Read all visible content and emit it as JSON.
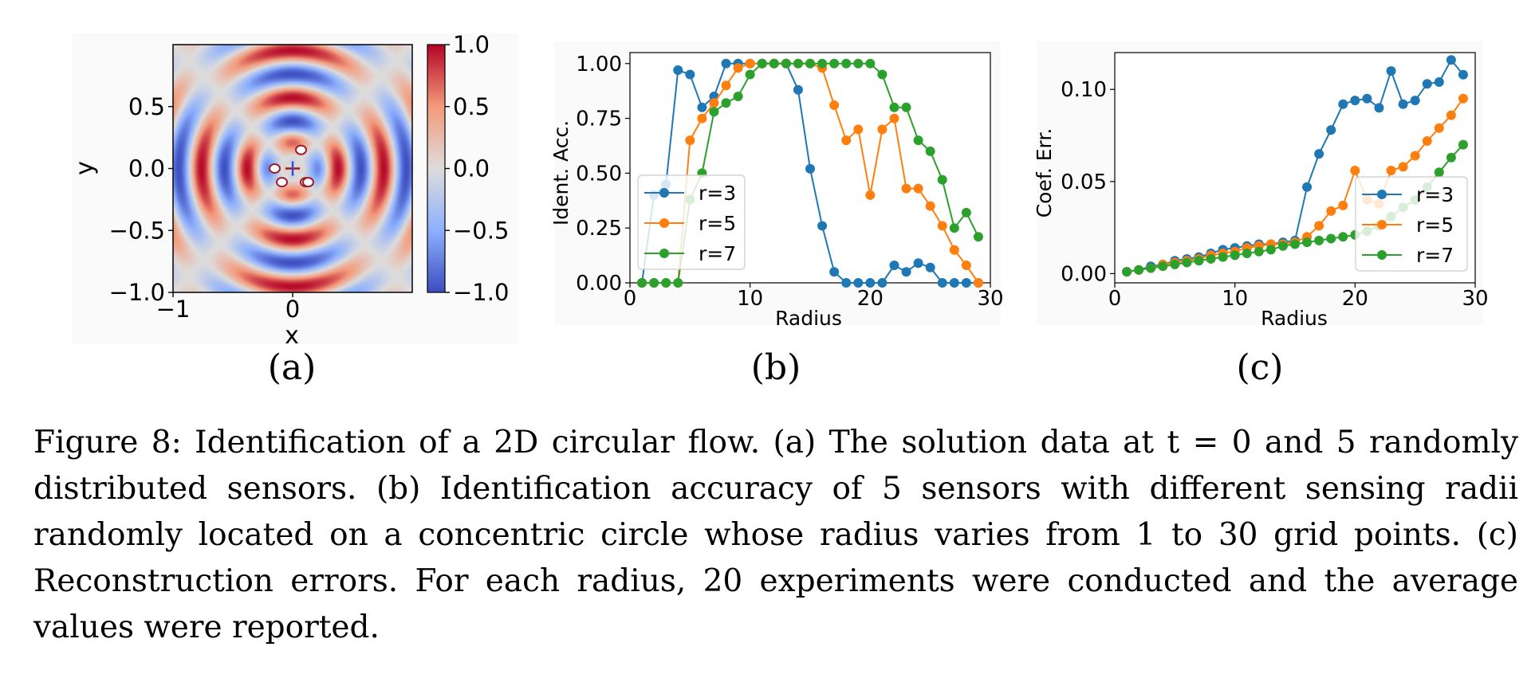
{
  "figure": {
    "caption": "Figure 8: Identification of a 2D circular flow. (a) The solution data at t = 0 and 5 randomly distributed sensors. (b) Identification accuracy of 5 sensors with different sensing radii randomly located on a concentric circle whose radius varies from 1 to 30 grid points. (c) Reconstruction errors. For each radius, 20 experiments were conducted and the average values were reported."
  },
  "chart_data": [
    {
      "type": "heatmap",
      "panel_label": "(a)",
      "xlabel": "x",
      "ylabel": "y",
      "xlim": [
        -1.0,
        1.0
      ],
      "ylim": [
        -1.0,
        1.0
      ],
      "xticks": [
        "−1",
        "0"
      ],
      "yticks": [
        "0.5",
        "0.0",
        "−0.5",
        "−1.0"
      ],
      "colorbar": {
        "min": -1.0,
        "max": 1.0,
        "ticks": [
          "1.0",
          "0.5",
          "0.0",
          "−0.5",
          "−1.0"
        ],
        "colormap": "coolwarm"
      },
      "center_marker": {
        "x": 0.0,
        "y": 0.0,
        "symbol": "+"
      },
      "sensors": [
        {
          "x": 0.07,
          "y": 0.15
        },
        {
          "x": -0.15,
          "y": 0.0
        },
        {
          "x": -0.09,
          "y": -0.11
        },
        {
          "x": 0.11,
          "y": -0.11
        },
        {
          "x": 0.13,
          "y": -0.11
        }
      ]
    },
    {
      "type": "line",
      "panel_label": "(b)",
      "xlabel": "Radius",
      "ylabel": "Ident. Acc.",
      "xlim": [
        0,
        30
      ],
      "ylim": [
        0.0,
        1.05
      ],
      "xticks": [
        "0",
        "10",
        "20",
        "30"
      ],
      "yticks": [
        "0.00",
        "0.25",
        "0.50",
        "0.75",
        "1.00"
      ],
      "legend": "center-left",
      "x": [
        1,
        2,
        3,
        4,
        5,
        6,
        7,
        8,
        9,
        10,
        11,
        12,
        13,
        14,
        15,
        16,
        17,
        18,
        19,
        20,
        21,
        22,
        23,
        24,
        25,
        26,
        27,
        28,
        29
      ],
      "series": [
        {
          "name": "r=3",
          "color": "#1f77b4",
          "values": [
            0,
            0.4,
            0.45,
            0.97,
            0.95,
            0.8,
            0.85,
            1.0,
            1.0,
            1.0,
            1.0,
            1.0,
            1.0,
            0.88,
            0.52,
            0.26,
            0.05,
            0.0,
            0.0,
            0.0,
            0.0,
            0.08,
            0.05,
            0.09,
            0.07,
            0.0,
            0.0,
            0.0,
            0.0
          ]
        },
        {
          "name": "r=5",
          "color": "#ff7f0e",
          "values": [
            0,
            0,
            0,
            0,
            0.65,
            0.75,
            0.82,
            0.9,
            0.98,
            1.0,
            1.0,
            1.0,
            1.0,
            1.0,
            1.0,
            0.98,
            0.81,
            0.65,
            0.7,
            0.4,
            0.7,
            0.75,
            0.43,
            0.43,
            0.35,
            0.26,
            0.15,
            0.08,
            0.0
          ]
        },
        {
          "name": "r=7",
          "color": "#2ca02c",
          "values": [
            0,
            0,
            0,
            0,
            0.38,
            0.5,
            0.78,
            0.82,
            0.85,
            0.95,
            1.0,
            1.0,
            1.0,
            1.0,
            1.0,
            1.0,
            1.0,
            1.0,
            1.0,
            1.0,
            0.95,
            0.8,
            0.8,
            0.65,
            0.6,
            0.47,
            0.25,
            0.32,
            0.21
          ]
        }
      ]
    },
    {
      "type": "line",
      "panel_label": "(c)",
      "xlabel": "Radius",
      "ylabel": "Coef. Err.",
      "xlim": [
        0,
        30
      ],
      "ylim": [
        -0.005,
        0.12
      ],
      "xticks": [
        "0",
        "10",
        "20",
        "30"
      ],
      "yticks": [
        "0.00",
        "0.05",
        "0.10"
      ],
      "legend": "lower-right",
      "x": [
        1,
        2,
        3,
        4,
        5,
        6,
        7,
        8,
        9,
        10,
        11,
        12,
        13,
        14,
        15,
        16,
        17,
        18,
        19,
        20,
        21,
        22,
        23,
        24,
        25,
        26,
        27,
        28,
        29
      ],
      "series": [
        {
          "name": "r=3",
          "color": "#1f77b4",
          "values": [
            0.001,
            0.002,
            0.004,
            0.005,
            0.007,
            0.008,
            0.009,
            0.011,
            0.013,
            0.014,
            0.015,
            0.016,
            0.016,
            0.017,
            0.018,
            0.047,
            0.065,
            0.078,
            0.092,
            0.094,
            0.095,
            0.09,
            0.11,
            0.092,
            0.094,
            0.103,
            0.104,
            0.116,
            0.108
          ]
        },
        {
          "name": "r=5",
          "color": "#ff7f0e",
          "values": [
            0.001,
            0.002,
            0.003,
            0.005,
            0.006,
            0.007,
            0.008,
            0.01,
            0.011,
            0.012,
            0.014,
            0.015,
            0.016,
            0.016,
            0.017,
            0.02,
            0.026,
            0.034,
            0.037,
            0.056,
            0.04,
            0.038,
            0.056,
            0.058,
            0.064,
            0.072,
            0.079,
            0.086,
            0.095
          ]
        },
        {
          "name": "r=7",
          "color": "#2ca02c",
          "values": [
            0.001,
            0.002,
            0.003,
            0.004,
            0.005,
            0.006,
            0.007,
            0.008,
            0.009,
            0.01,
            0.011,
            0.012,
            0.013,
            0.015,
            0.016,
            0.017,
            0.018,
            0.019,
            0.02,
            0.021,
            0.023,
            0.026,
            0.031,
            0.036,
            0.04,
            0.047,
            0.055,
            0.063,
            0.07
          ]
        }
      ]
    }
  ]
}
